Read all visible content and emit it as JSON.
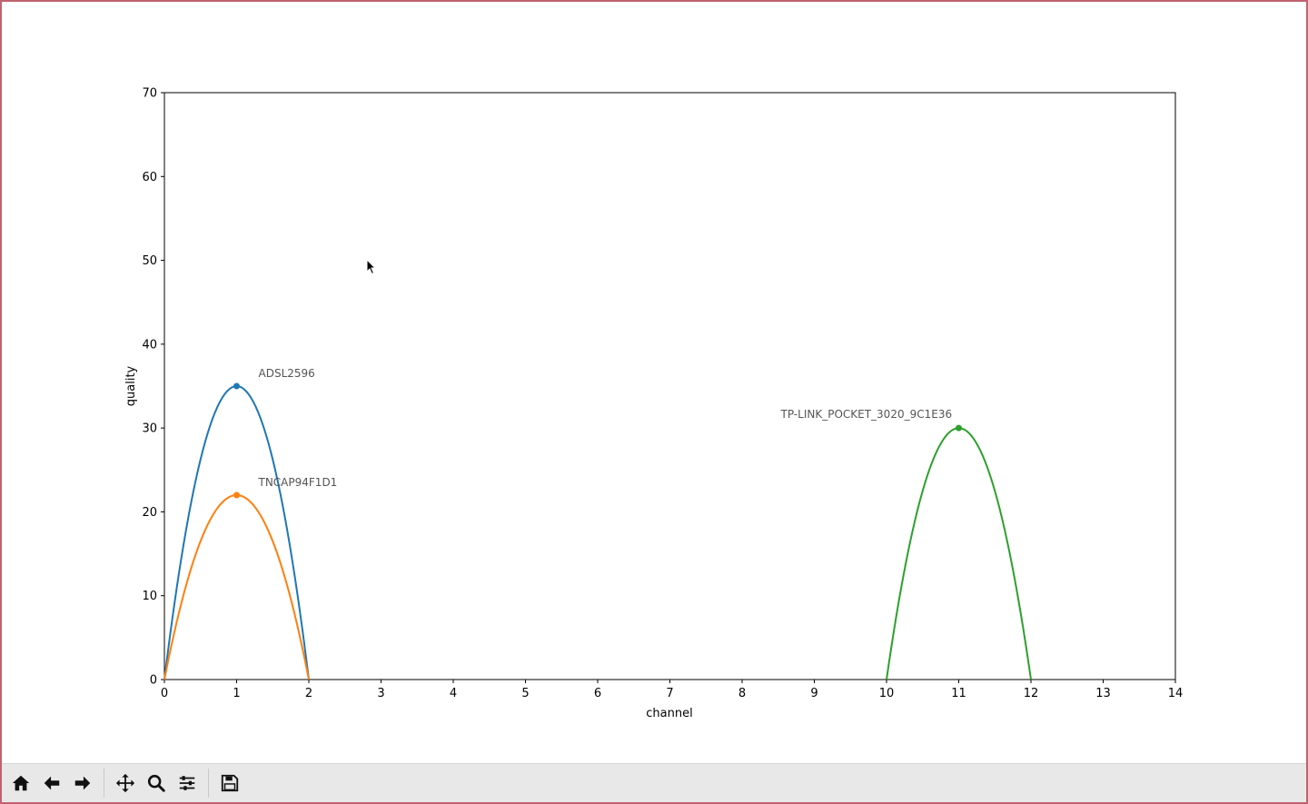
{
  "chart_data": {
    "type": "line",
    "xlabel": "channel",
    "ylabel": "quality",
    "xlim": [
      0,
      14
    ],
    "ylim": [
      0,
      70
    ],
    "x_ticks": [
      0,
      1,
      2,
      3,
      4,
      5,
      6,
      7,
      8,
      9,
      10,
      11,
      12,
      13,
      14
    ],
    "y_ticks": [
      0,
      10,
      20,
      30,
      40,
      50,
      60,
      70
    ],
    "grid": false,
    "series": [
      {
        "name": "ADSL2596",
        "color": "#1f77b4",
        "x": [
          0,
          1,
          2
        ],
        "y": [
          0,
          35,
          0
        ],
        "peak": [
          1,
          35
        ]
      },
      {
        "name": "TNCAP94F1D1",
        "color": "#ff7f0e",
        "x": [
          0,
          1,
          2
        ],
        "y": [
          0,
          22,
          0
        ],
        "peak": [
          1,
          22
        ]
      },
      {
        "name": "TP-LINK_POCKET_3020_9C1E36",
        "color": "#2ca02c",
        "x": [
          10,
          11,
          12
        ],
        "y": [
          0,
          30,
          0
        ],
        "peak": [
          11,
          30
        ]
      }
    ]
  },
  "toolbar": {
    "buttons": [
      {
        "name": "home-button",
        "icon": "home-icon"
      },
      {
        "name": "back-button",
        "icon": "arrow-left-icon"
      },
      {
        "name": "forward-button",
        "icon": "arrow-right-icon"
      },
      {
        "name": "pan-button",
        "icon": "move-icon"
      },
      {
        "name": "zoom-button",
        "icon": "magnifier-icon"
      },
      {
        "name": "configure-subplots-button",
        "icon": "sliders-icon"
      },
      {
        "name": "save-button",
        "icon": "floppy-disk-icon"
      }
    ]
  }
}
